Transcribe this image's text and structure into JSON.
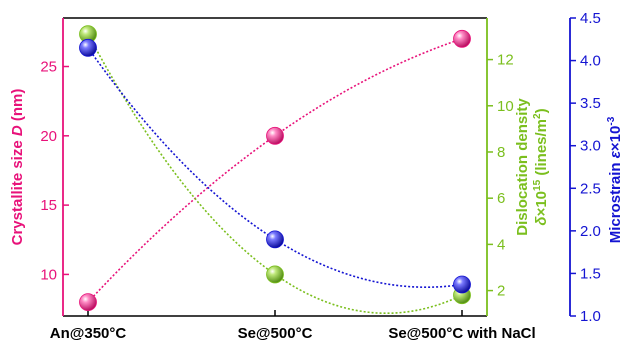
{
  "chart_data": {
    "type": "scatter",
    "categories": [
      "An@350°C",
      "Se@500°C",
      "Se@500°C with NaCl"
    ],
    "series": [
      {
        "axis": "left",
        "color": "#e8127a",
        "values": [
          8.0,
          20.0,
          27.0
        ]
      },
      {
        "axis": "right1",
        "color": "#7bbf1e",
        "values": [
          13.1,
          2.7,
          1.8
        ]
      },
      {
        "axis": "right2",
        "color": "#1414d2",
        "values": [
          4.15,
          1.9,
          1.37
        ]
      }
    ],
    "axes": {
      "left": {
        "label_pre": "Crystallite size ",
        "label_var": "D",
        "label_post": " (nm)",
        "ylim": [
          7.0,
          28.5
        ],
        "ticks": [
          10,
          15,
          20,
          25
        ],
        "color": "#e8127a"
      },
      "right1": {
        "label_line1": "Dislocation density",
        "label_line2_var": "δ",
        "label_line2_mid": "×10",
        "label_line2_exp": "15",
        "label_line2_post": " (lines/m",
        "label_line2_exp2": "2",
        "label_line2_end": ")",
        "ylim": [
          0.9,
          13.8
        ],
        "ticks": [
          2,
          4,
          6,
          8,
          10,
          12
        ],
        "color": "#7bbf1e"
      },
      "right2": {
        "label_pre": "Microstrain ",
        "label_var": "ε",
        "label_mid": "×10",
        "label_exp": "-3",
        "ylim": [
          1.0,
          4.5
        ],
        "ticks": [
          "1.0",
          "1.5",
          "2.0",
          "2.5",
          "3.0",
          "3.5",
          "4.0",
          "4.5"
        ],
        "color": "#1414d2"
      }
    },
    "grid": false,
    "legend": "none"
  }
}
